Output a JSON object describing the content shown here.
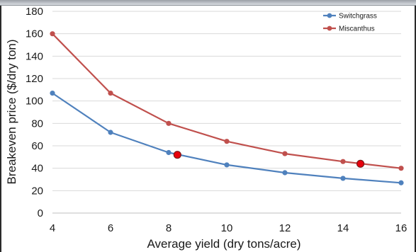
{
  "chart_data": {
    "type": "line",
    "title": "",
    "xlabel": "Average yield (dry tons/acre)",
    "ylabel": "Breakeven price ($/dry ton)",
    "xlim": [
      4,
      16
    ],
    "ylim": [
      0,
      180
    ],
    "x_ticks": [
      4,
      6,
      8,
      10,
      12,
      14,
      16
    ],
    "y_ticks": [
      0,
      20,
      40,
      60,
      80,
      100,
      120,
      140,
      160,
      180
    ],
    "grid": true,
    "legend": "top-right",
    "series": [
      {
        "name": "Switchgrass",
        "color": "#4f81bd",
        "x": [
          4,
          6,
          8,
          10,
          12,
          14,
          16
        ],
        "y": [
          107,
          72,
          54,
          43,
          36,
          31,
          27
        ]
      },
      {
        "name": "Miscanthus",
        "color": "#c0504d",
        "x": [
          4,
          6,
          8,
          10,
          12,
          14,
          16
        ],
        "y": [
          160,
          107,
          80,
          64,
          53,
          46,
          40
        ]
      }
    ],
    "highlight_points": [
      {
        "x": 8.3,
        "y": 52,
        "color": "#e8000b"
      },
      {
        "x": 14.6,
        "y": 44,
        "color": "#e8000b"
      }
    ]
  }
}
